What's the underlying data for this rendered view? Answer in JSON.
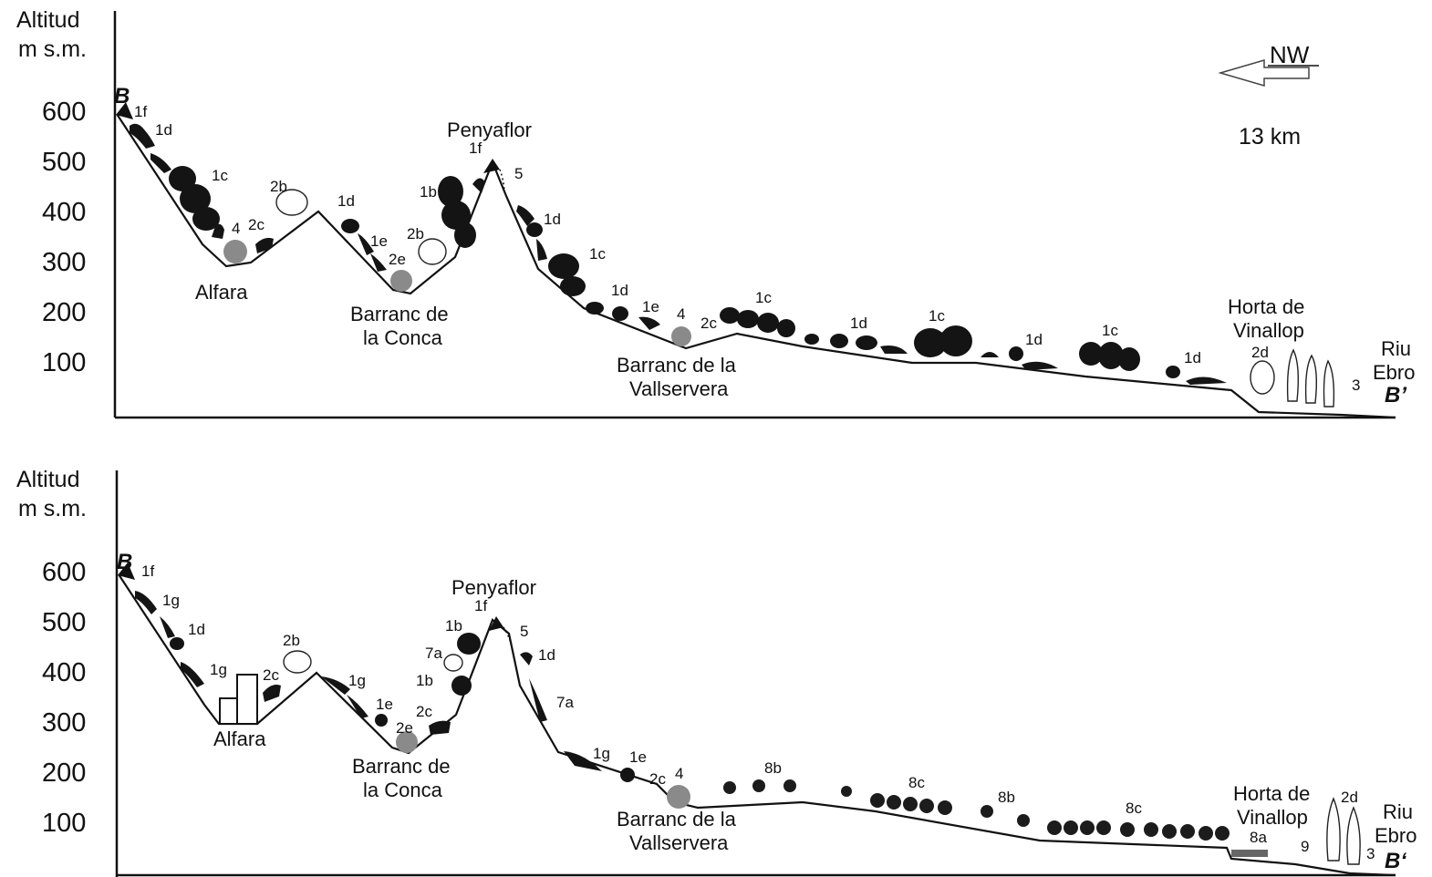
{
  "panels": [
    {
      "axis_label_line1": "Altitud",
      "axis_label_line2": "m s.m.",
      "y_ticks": [
        "600",
        "500",
        "400",
        "300",
        "200",
        "100"
      ],
      "start_label": "B",
      "end_label": "B’",
      "direction": "NW",
      "distance": "13 km",
      "places": {
        "alfara": "Alfara",
        "conca_1": "Barranc de",
        "conca_2": "la Conca",
        "penyaflor": "Penyaflor",
        "vallservera_1": "Barranc de la",
        "vallservera_2": "Vallservera",
        "horta_1": "Horta de",
        "horta_2": "Vinallop",
        "riu_1": "Riu",
        "riu_2": "Ebro"
      },
      "codes": [
        "1f",
        "1d",
        "1c",
        "4",
        "2c",
        "2b",
        "1d",
        "1e",
        "2e",
        "2b",
        "1b",
        "1f",
        "5",
        "1d",
        "1c",
        "1d",
        "1e",
        "4",
        "2c",
        "1c",
        "1d",
        "1c",
        "1d",
        "1c",
        "1d",
        "2d",
        "3"
      ]
    },
    {
      "axis_label_line1": "Altitud",
      "axis_label_line2": "m s.m.",
      "y_ticks": [
        "600",
        "500",
        "400",
        "300",
        "200",
        "100"
      ],
      "start_label": "B",
      "end_label": "B‘",
      "places": {
        "alfara": "Alfara",
        "conca_1": "Barranc de",
        "conca_2": "la Conca",
        "penyaflor": "Penyaflor",
        "vallservera_1": "Barranc de la",
        "vallservera_2": "Vallservera",
        "horta_1": "Horta de",
        "horta_2": "Vinallop",
        "riu_1": "Riu",
        "riu_2": "Ebro"
      },
      "codes": [
        "1f",
        "1g",
        "1d",
        "1g",
        "2c",
        "2b",
        "1g",
        "1e",
        "2e",
        "2c",
        "1b",
        "7a",
        "1b",
        "1f",
        "5",
        "1d",
        "7a",
        "1g",
        "1e",
        "2c",
        "4",
        "8b",
        "8c",
        "8b",
        "8c",
        "8a",
        "9",
        "2d",
        "3"
      ]
    }
  ],
  "colors": {
    "ink": "#111111",
    "vegetation_dark": "#141414",
    "vegetation_grey": "#8a8a8a"
  }
}
